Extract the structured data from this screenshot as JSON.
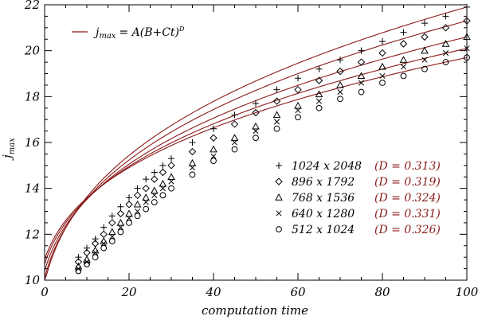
{
  "chart_data": {
    "type": "scatter",
    "title": "",
    "xlabel": "computation time",
    "ylabel": "j_max",
    "ylabel_main": "j",
    "ylabel_sub": "max",
    "xlim": [
      0,
      100
    ],
    "ylim": [
      10,
      22
    ],
    "x_ticks": [
      0,
      20,
      40,
      60,
      80,
      100
    ],
    "y_ticks": [
      10,
      12,
      14,
      16,
      18,
      20,
      22
    ],
    "x_tick_labels": [
      "0",
      "20",
      "40",
      "60",
      "80",
      "100"
    ],
    "y_tick_labels": [
      "10",
      "12",
      "14",
      "16",
      "18",
      "20",
      "22"
    ],
    "fit_legend": {
      "lhs_main": "j",
      "lhs_sub": "max",
      "rhs": "= A(B+Ct)",
      "exponent": "D"
    },
    "fit_color": "#8b1a1a",
    "series": [
      {
        "name": "1024 x 2048",
        "marker": "plus",
        "D_label": "(D = 0.313)",
        "D": 0.313,
        "fit_y0": 9.9,
        "fit_y100": 21.9,
        "x": [
          8,
          10,
          12,
          14,
          16,
          18,
          20,
          22,
          24,
          26,
          28,
          30,
          35,
          40,
          45,
          50,
          55,
          60,
          65,
          70,
          75,
          80,
          85,
          90,
          95,
          100
        ],
        "y": [
          11.0,
          11.4,
          11.8,
          12.3,
          12.8,
          13.2,
          13.6,
          14.0,
          14.4,
          14.7,
          15.0,
          15.3,
          16.0,
          16.6,
          17.2,
          17.7,
          18.3,
          18.8,
          19.2,
          19.6,
          20.0,
          20.4,
          20.8,
          21.2,
          21.5,
          21.9
        ]
      },
      {
        "name": "896 x 1792",
        "marker": "diamond",
        "D_label": "(D = 0.319)",
        "D": 0.319,
        "fit_y0": 10.1,
        "fit_y100": 21.3,
        "x": [
          8,
          10,
          12,
          14,
          16,
          18,
          20,
          22,
          24,
          26,
          28,
          30,
          35,
          40,
          45,
          50,
          55,
          60,
          65,
          70,
          75,
          80,
          85,
          90,
          95,
          100
        ],
        "y": [
          10.8,
          11.2,
          11.6,
          12.0,
          12.5,
          12.9,
          13.3,
          13.7,
          14.0,
          14.4,
          14.7,
          15.0,
          15.6,
          16.2,
          16.8,
          17.3,
          17.8,
          18.3,
          18.7,
          19.1,
          19.5,
          19.9,
          20.3,
          20.6,
          21.0,
          21.3
        ]
      },
      {
        "name": "768 x 1536",
        "marker": "triangle",
        "D_label": "(D = 0.324)",
        "D": 0.324,
        "fit_y0": 10.4,
        "fit_y100": 20.6,
        "x": [
          8,
          10,
          12,
          14,
          16,
          18,
          20,
          22,
          24,
          26,
          28,
          30,
          35,
          40,
          45,
          50,
          55,
          60,
          65,
          70,
          75,
          80,
          85,
          90,
          95,
          100
        ],
        "y": [
          10.6,
          10.9,
          11.3,
          11.7,
          12.1,
          12.5,
          12.9,
          13.3,
          13.6,
          13.9,
          14.2,
          14.5,
          15.1,
          15.7,
          16.2,
          16.7,
          17.2,
          17.6,
          18.1,
          18.5,
          18.9,
          19.3,
          19.6,
          20.0,
          20.3,
          20.6
        ]
      },
      {
        "name": "640 x 1280",
        "marker": "cross",
        "D_label": "(D = 0.331)",
        "D": 0.331,
        "fit_y0": 10.7,
        "fit_y100": 20.1,
        "x": [
          8,
          10,
          12,
          14,
          16,
          18,
          20,
          22,
          24,
          26,
          28,
          30,
          35,
          40,
          45,
          50,
          55,
          60,
          65,
          70,
          75,
          80,
          85,
          90,
          95,
          100
        ],
        "y": [
          10.5,
          10.8,
          11.2,
          11.6,
          11.9,
          12.3,
          12.7,
          13.0,
          13.4,
          13.7,
          14.0,
          14.3,
          14.9,
          15.4,
          16.0,
          16.5,
          16.9,
          17.4,
          17.8,
          18.2,
          18.6,
          18.9,
          19.3,
          19.6,
          19.9,
          20.1
        ]
      },
      {
        "name": "512 x 1024",
        "marker": "circle",
        "D_label": "(D = 0.326)",
        "D": 0.326,
        "fit_y0": 10.9,
        "fit_y100": 19.7,
        "x": [
          8,
          10,
          12,
          14,
          16,
          18,
          20,
          22,
          24,
          26,
          28,
          30,
          35,
          40,
          45,
          50,
          55,
          60,
          65,
          70,
          75,
          80,
          85,
          90,
          95,
          100
        ],
        "y": [
          10.4,
          10.7,
          11.0,
          11.4,
          11.7,
          12.1,
          12.5,
          12.8,
          13.1,
          13.4,
          13.7,
          14.0,
          14.6,
          15.2,
          15.7,
          16.2,
          16.6,
          17.1,
          17.5,
          17.9,
          18.2,
          18.6,
          18.9,
          19.2,
          19.5,
          19.7
        ]
      }
    ]
  }
}
